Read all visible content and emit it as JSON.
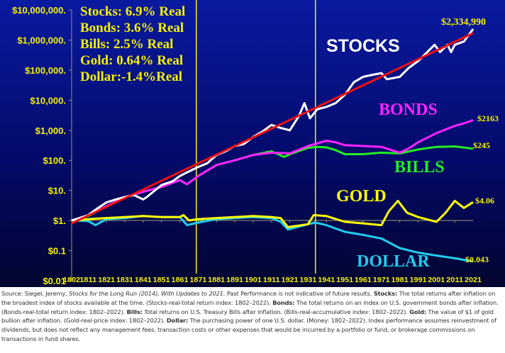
{
  "chart_data": {
    "type": "line",
    "title": "",
    "xlabel": "",
    "ylabel": "",
    "y_scale": "log",
    "ylim": [
      0.01,
      10000000
    ],
    "xlim": [
      1802,
      2021
    ],
    "grid": false,
    "y_ticks": [
      "$10,000,000.",
      "$1,000,000.",
      "$100,000.",
      "$10,000.",
      "$1,000.",
      "$100.",
      "$10.",
      "$1.",
      "$0.1",
      "$0.01"
    ],
    "y_tick_values": [
      10000000,
      1000000,
      100000,
      10000,
      1000,
      100,
      10,
      1,
      0.1,
      0.01
    ],
    "x_ticks": [
      "1802",
      "1811",
      "1821",
      "1831",
      "1841",
      "1851",
      "1861",
      "1871",
      "1881",
      "1891",
      "1901",
      "1911",
      "1921",
      "1931",
      "1941",
      "1951",
      "1961",
      "1971",
      "1981",
      "1991",
      "2001",
      "2011",
      "2021"
    ],
    "reference_lines_years": [
      1870,
      1935
    ],
    "reference_line_color": "#f5f000",
    "legend_box": [
      "Stocks: 6.9% Real",
      "Bonds: 3.6% Real",
      "Bills:    2.5% Real",
      "Gold:   0.64% Real",
      "Dollar:-1.4%Real"
    ],
    "legend_placement": "top-left",
    "series": [
      {
        "name": "STOCKS",
        "color": "#ffffff",
        "end_label": "$2,334,990",
        "x": [
          1802,
          1808,
          1811,
          1816,
          1821,
          1826,
          1831,
          1836,
          1841,
          1843,
          1851,
          1857,
          1861,
          1865,
          1871,
          1876,
          1881,
          1886,
          1891,
          1896,
          1901,
          1906,
          1911,
          1916,
          1921,
          1926,
          1929,
          1932,
          1936,
          1941,
          1946,
          1951,
          1956,
          1961,
          1966,
          1971,
          1974,
          1981,
          1986,
          1991,
          1996,
          2000,
          2003,
          2007,
          2009,
          2011,
          2016,
          2021
        ],
        "values": [
          1,
          1.3,
          1.5,
          2.5,
          4,
          5,
          6,
          7,
          5,
          6,
          15,
          20,
          30,
          40,
          60,
          80,
          150,
          200,
          300,
          350,
          600,
          900,
          1500,
          1200,
          1000,
          3000,
          8000,
          2500,
          5000,
          6000,
          8000,
          15000,
          40000,
          60000,
          70000,
          80000,
          50000,
          60000,
          120000,
          200000,
          400000,
          700000,
          400000,
          700000,
          400000,
          700000,
          900000,
          2334990
        ]
      },
      {
        "name": "BONDS",
        "color": "#ff22ff",
        "end_label": "$2163",
        "x": [
          1802,
          1811,
          1821,
          1831,
          1841,
          1851,
          1861,
          1865,
          1871,
          1881,
          1891,
          1901,
          1911,
          1921,
          1931,
          1941,
          1946,
          1951,
          1961,
          1971,
          1981,
          1986,
          1991,
          2001,
          2011,
          2016,
          2021
        ],
        "values": [
          1,
          1.5,
          3,
          6,
          9,
          13,
          22,
          16,
          30,
          70,
          100,
          150,
          180,
          170,
          300,
          450,
          400,
          320,
          300,
          280,
          180,
          250,
          400,
          800,
          1400,
          1700,
          2163
        ]
      },
      {
        "name": "BILLS",
        "color": "#22ee22",
        "end_label": "$245",
        "x": [
          1802,
          1811,
          1821,
          1831,
          1841,
          1851,
          1861,
          1865,
          1871,
          1881,
          1891,
          1901,
          1911,
          1918,
          1921,
          1931,
          1936,
          1941,
          1946,
          1951,
          1961,
          1971,
          1981,
          1991,
          2001,
          2011,
          2021
        ],
        "values": [
          1,
          1.4,
          3,
          6,
          9,
          13,
          22,
          16,
          30,
          70,
          100,
          150,
          200,
          130,
          160,
          260,
          280,
          270,
          220,
          160,
          160,
          180,
          170,
          230,
          280,
          290,
          245
        ]
      },
      {
        "name": "GOLD",
        "color": "#ffff00",
        "end_label": "$4.06",
        "x": [
          1802,
          1811,
          1821,
          1831,
          1841,
          1851,
          1861,
          1863,
          1866,
          1871,
          1881,
          1891,
          1901,
          1911,
          1916,
          1920,
          1931,
          1934,
          1941,
          1951,
          1961,
          1971,
          1975,
          1980,
          1985,
          1991,
          2001,
          2006,
          2011,
          2016,
          2021
        ],
        "values": [
          1,
          1.1,
          1.2,
          1.3,
          1.4,
          1.3,
          1.3,
          1.5,
          1.0,
          1.1,
          1.2,
          1.3,
          1.4,
          1.3,
          1.2,
          0.6,
          0.75,
          1.5,
          1.4,
          0.9,
          0.8,
          0.7,
          2,
          4.5,
          1.8,
          1.3,
          0.9,
          1.8,
          4.5,
          2.6,
          4.06
        ]
      },
      {
        "name": "DOLLAR",
        "color": "#22ccee",
        "end_label": "$0.043",
        "x": [
          1802,
          1811,
          1815,
          1821,
          1831,
          1841,
          1851,
          1861,
          1865,
          1871,
          1881,
          1891,
          1901,
          1911,
          1916,
          1920,
          1931,
          1935,
          1941,
          1951,
          1961,
          1971,
          1981,
          1991,
          2001,
          2011,
          2021
        ],
        "values": [
          1,
          0.95,
          0.7,
          1.1,
          1.2,
          1.4,
          1.3,
          1.3,
          0.7,
          0.85,
          1.1,
          1.2,
          1.3,
          1.2,
          0.9,
          0.5,
          0.75,
          0.85,
          0.7,
          0.42,
          0.33,
          0.25,
          0.12,
          0.085,
          0.068,
          0.055,
          0.043
        ]
      },
      {
        "name": "",
        "color": "#ee1111",
        "role": "trend",
        "x": [
          1802,
          2021
        ],
        "values": [
          0.8,
          1700000
        ]
      }
    ],
    "series_labels": [
      "STOCKS",
      "BONDS",
      "BILLS",
      "GOLD",
      "DOLLAR"
    ]
  },
  "footer": {
    "source_prefix": "Source: Siegel, Jeremy, ",
    "source_title": "Stocks for the Long Run (2014), With Updates to 2021.",
    "disclaimer": " Past Performance is not indicative of future results. ",
    "stocks_label": "Stocks:",
    "stocks_text": " The total returns after inflation on the broadest index of stocks available at the time. (Stocks-real-total return index: 1802–2022). ",
    "bonds_label": "Bonds:",
    "bonds_text": " The total returns on an index on U.S. government bonds after inflation. (Bonds-real-total return index: 1802–2022). ",
    "bills_label": "Bills:",
    "bills_text": " Total returns on U.S. Treasury Bills after inflation. (Bills-real-accumulative index: 1802–2022). ",
    "gold_label": "Gold:",
    "gold_text": " The value of $1 of gold bullion after inflation. (Gold-real-price index: 1802–2022). ",
    "dollar_label": "Dollar:",
    "dollar_text": " The purchasing power of one U.S. dollar. (Money: 1802–2022). Index performance assumes reinvestment of dividends, but does not reflect any management fees, transaction costs or other expenses that would be incurred by a portfolio or fund, or brokerage commissions on transactions in fund shares."
  }
}
